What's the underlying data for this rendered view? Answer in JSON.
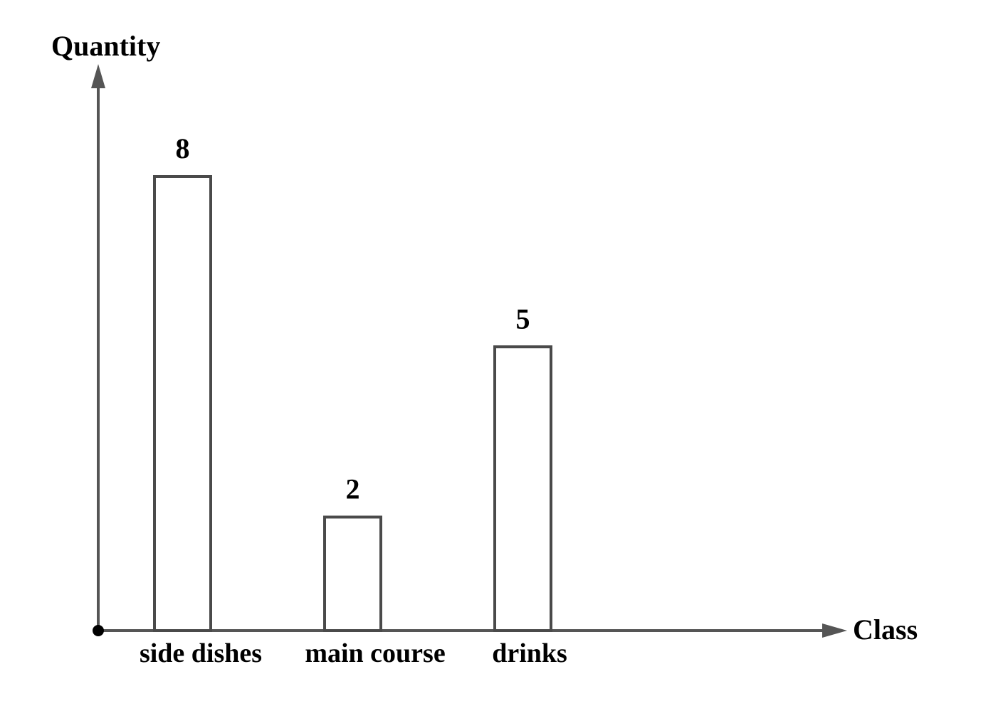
{
  "chart_data": {
    "type": "bar",
    "categories": [
      "side dishes",
      "main course",
      "drinks"
    ],
    "values": [
      8,
      2,
      5
    ],
    "xlabel": "Class",
    "ylabel": "Quantity",
    "bar_fill": "#ffffff",
    "bar_stroke": "#4a4a4a",
    "axis_color": "#555555",
    "text_color": "#000000",
    "grid": false,
    "legend": "none"
  }
}
